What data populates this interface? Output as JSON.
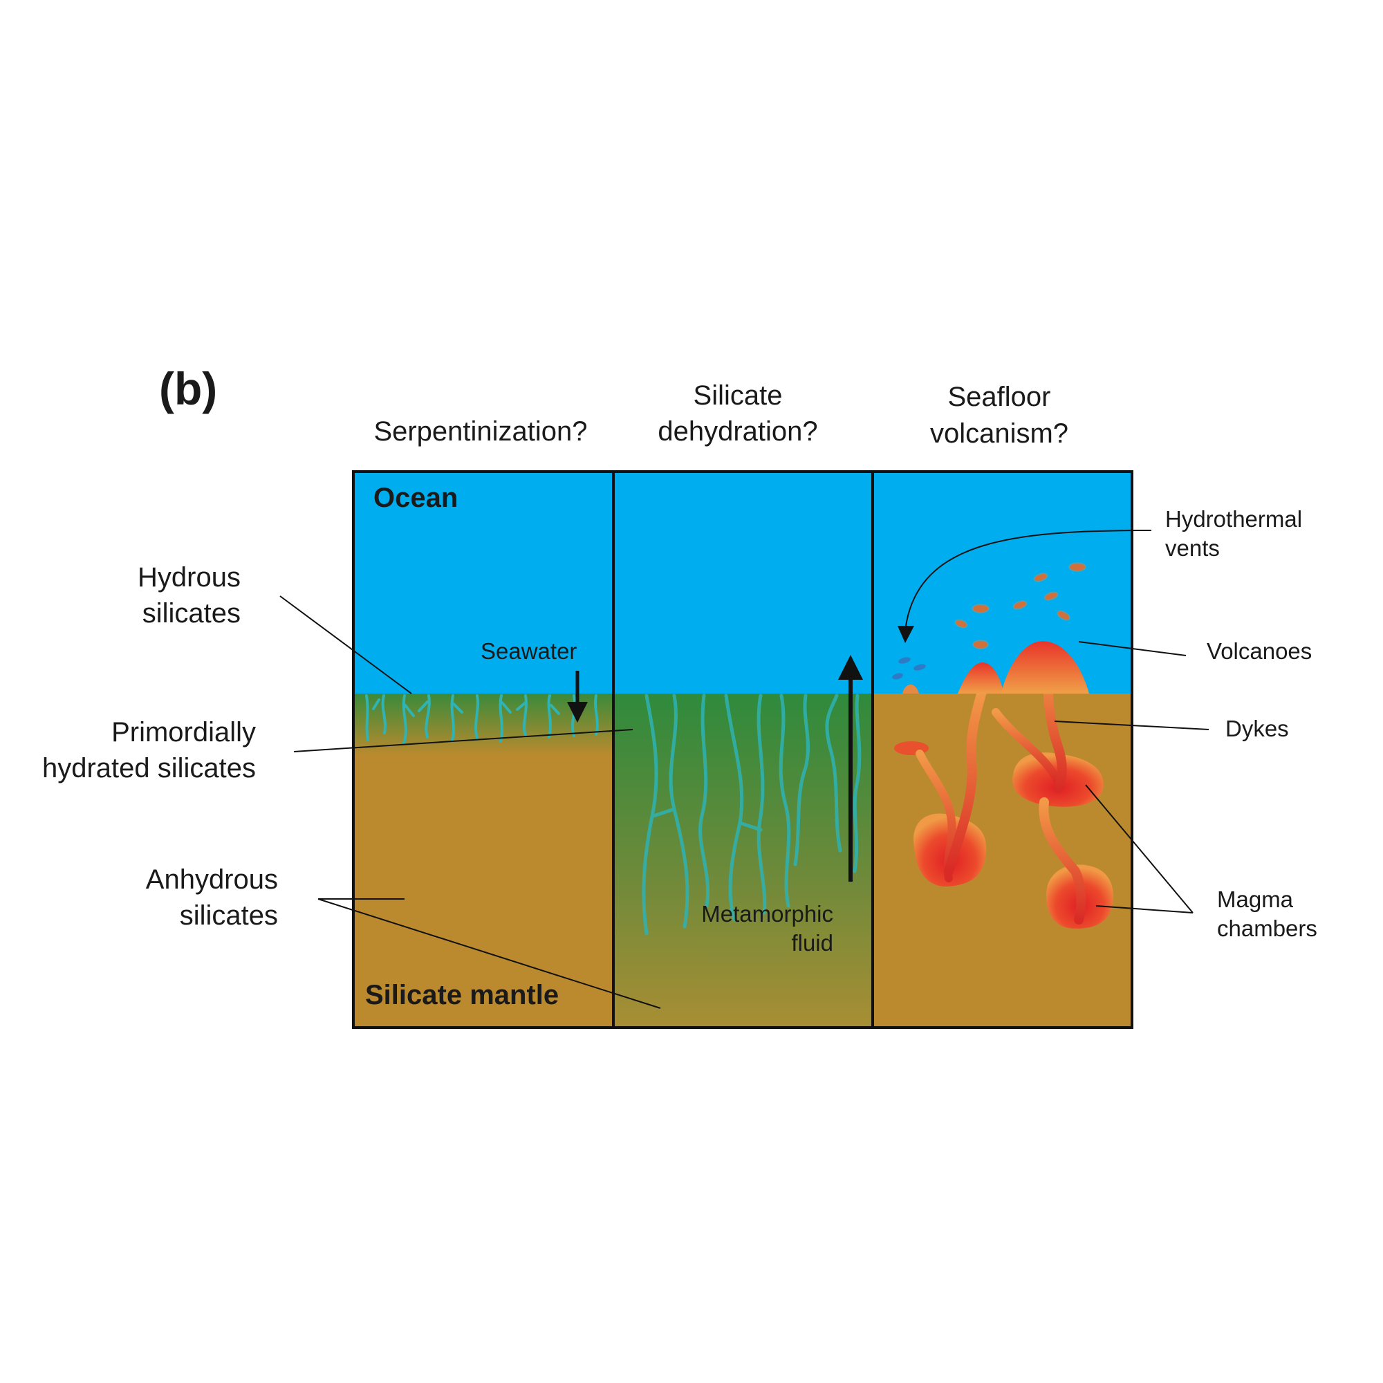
{
  "panel_label": "(b)",
  "column_titles": {
    "serpentinization": "Serpentinization?",
    "dehydration_line1": "Silicate",
    "dehydration_line2": "dehydration?",
    "volcanism_line1": "Seafloor",
    "volcanism_line2": "volcanism?"
  },
  "inner_labels": {
    "ocean": "Ocean",
    "mantle": "Silicate mantle",
    "seawater": "Seawater",
    "metamorphic_line1": "Metamorphic",
    "metamorphic_line2": "fluid"
  },
  "left_labels": {
    "hydrous_line1": "Hydrous",
    "hydrous_line2": "silicates",
    "primordial_line1": "Primordially",
    "primordial_line2": "hydrated silicates",
    "anhydrous_line1": "Anhydrous",
    "anhydrous_line2": "silicates"
  },
  "right_labels": {
    "vents_line1": "Hydrothermal",
    "vents_line2": "vents",
    "volcanoes": "Volcanoes",
    "dykes": "Dykes",
    "magma_line1": "Magma",
    "magma_line2": "chambers"
  },
  "colors": {
    "ocean": "#00adef",
    "mantle": "#bc8a2e",
    "hydrated": "#2f8a3c",
    "veins": "#2fb3b3",
    "magma": "#e8262a",
    "magma_outer": "#f08a3c",
    "vents": "#d0703a",
    "bubbles": "#2c7bc4",
    "outline": "#111111"
  }
}
